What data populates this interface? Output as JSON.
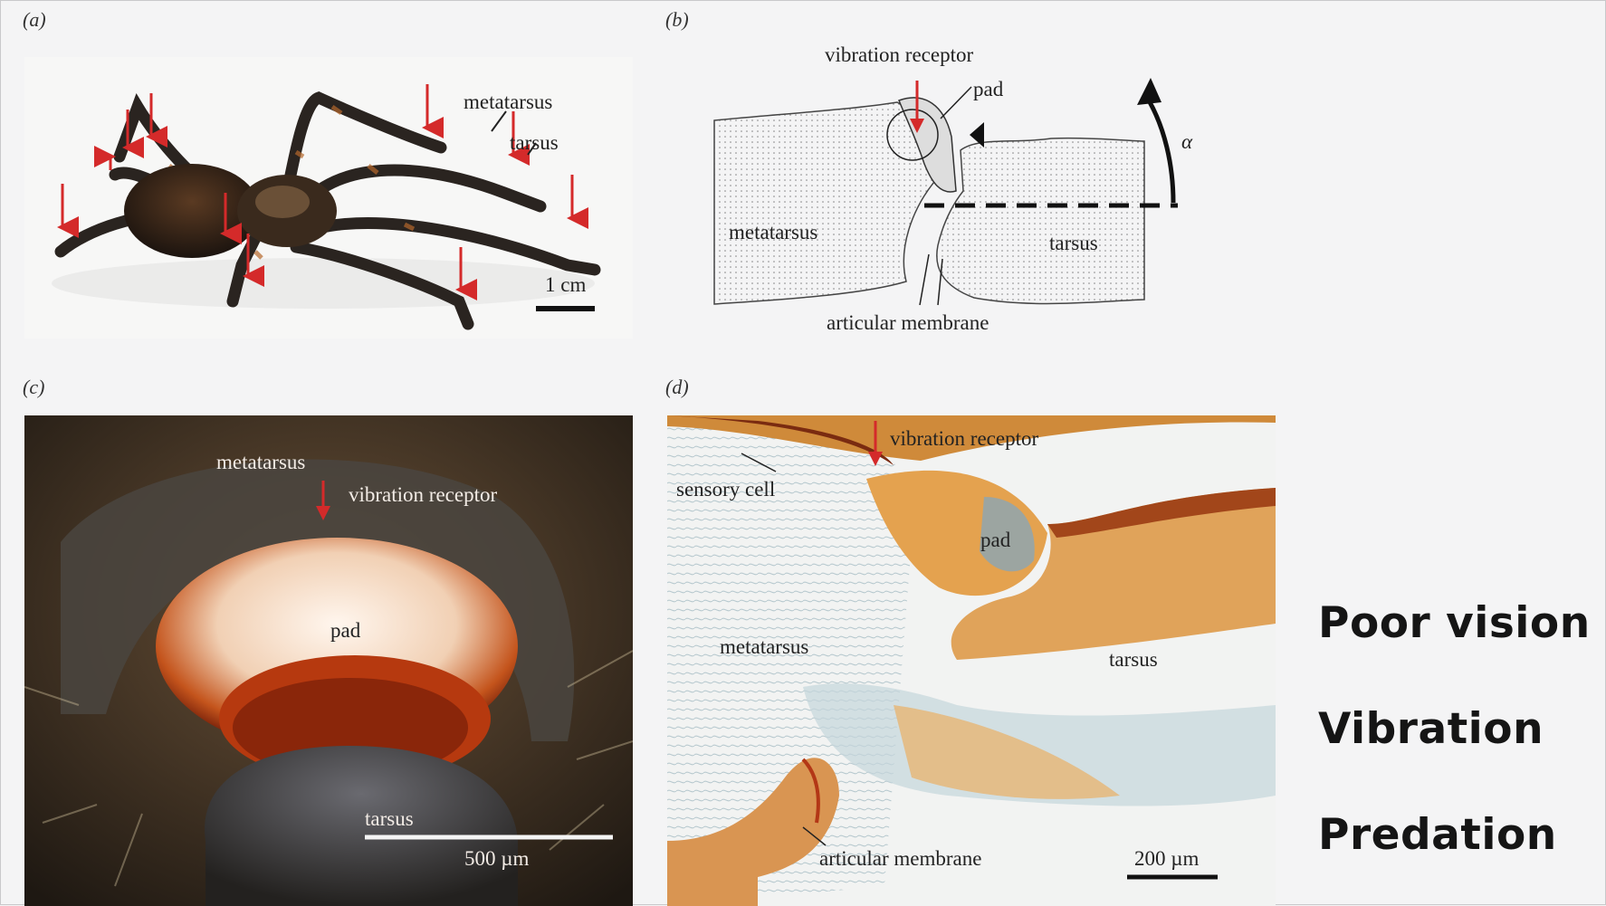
{
  "panels": {
    "a": {
      "label": "(a)",
      "metatarsus": "metatarsus",
      "tarsus": "tarsus",
      "scale": "1 cm"
    },
    "b": {
      "label": "(b)",
      "vibration_receptor": "vibration receptor",
      "pad": "pad",
      "alpha": "α",
      "metatarsus": "metatarsus",
      "tarsus": "tarsus",
      "articular_membrane": "articular membrane"
    },
    "c": {
      "label": "(c)",
      "metatarsus": "metatarsus",
      "vibration_receptor": "vibration receptor",
      "pad": "pad",
      "tarsus": "tarsus",
      "scale": "500 µm"
    },
    "d": {
      "label": "(d)",
      "vibration_receptor": "vibration receptor",
      "sensory_cell": "sensory cell",
      "pad": "pad",
      "metatarsus": "metatarsus",
      "tarsus": "tarsus",
      "articular_membrane": "articular membrane",
      "scale": "200 µm"
    }
  },
  "keywords": [
    "Poor vision",
    "Vibration",
    "Predation"
  ],
  "colors": {
    "arrow": "#d42a2a",
    "background": "#f4f4f5"
  }
}
